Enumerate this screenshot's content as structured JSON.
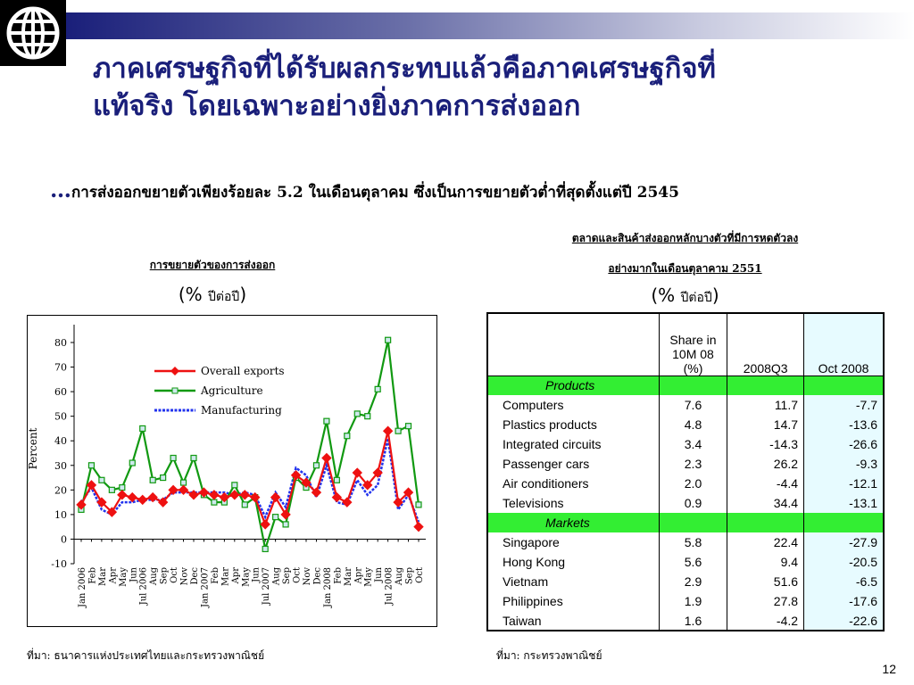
{
  "header": {
    "title_line1": "ภาคเศรษฐกิจที่ได้รับผลกระทบแล้วคือภาคเศรษฐกิจที่",
    "title_line2": "แท้จริง โดยเฉพาะอย่างยิ่งภาคการส่งออก",
    "subtitle_dots": "…",
    "subtitle": "การส่งออกขยายตัวเพียงร้อยละ 5.2 ในเดือนตุลาคม ซึ่งเป็นการขยายตัวต่ำที่สุดตั้งแต่ปี 2545"
  },
  "chart_caption": {
    "title": "การขยายตัวของการส่งออก",
    "unit_sym": "(%",
    "unit_txt": "ปีต่อปี",
    "unit_close": ")"
  },
  "chart_source": "ที่มา: ธนาคารแห่งประเทศไทยและกระทรวงพาณิชย์",
  "chart_data": {
    "type": "line",
    "ylabel": "Percent",
    "ylim": [
      -10,
      80
    ],
    "yticks": [
      -10,
      0,
      10,
      20,
      30,
      40,
      50,
      60,
      70,
      80
    ],
    "categories": [
      "Jan 2006",
      "Feb",
      "Mar",
      "Apr",
      "May",
      "Jun",
      "Jul 2006",
      "Aug",
      "Sep",
      "Oct",
      "Nov",
      "Dec",
      "Jan 2007",
      "Feb",
      "Mar",
      "Apr",
      "May",
      "Jun",
      "Jul 2007",
      "Aug",
      "Sep",
      "Oct",
      "Nov",
      "Dec",
      "Jan 2008",
      "Feb",
      "Mar",
      "Apr",
      "May",
      "Jun",
      "Jul 2008",
      "Aug",
      "Sep",
      "Oct"
    ],
    "legend_position": "top-center",
    "series": [
      {
        "name": "Overall exports",
        "color": "#ee1111",
        "marker": "diamond",
        "values": [
          14,
          22,
          15,
          11,
          18,
          17,
          16,
          17,
          15,
          20,
          20,
          18,
          19,
          18,
          17,
          18,
          18,
          17,
          6,
          17,
          10,
          26,
          23,
          19,
          33,
          17,
          15,
          27,
          22,
          27,
          44,
          15,
          19,
          5
        ]
      },
      {
        "name": "Agriculture",
        "color": "#119911",
        "marker": "square",
        "values": [
          12,
          30,
          24,
          20,
          21,
          31,
          45,
          24,
          25,
          33,
          23,
          33,
          18,
          15,
          15,
          22,
          14,
          17,
          -4,
          9,
          6,
          25,
          21,
          30,
          48,
          24,
          42,
          51,
          50,
          61,
          81,
          44,
          46,
          14
        ]
      },
      {
        "name": "Manufacturing",
        "color": "#2233ee",
        "marker": "none",
        "dashed": true,
        "values": [
          15,
          21,
          12,
          10,
          15,
          15,
          16,
          16,
          16,
          19,
          19,
          19,
          19,
          19,
          19,
          18,
          19,
          18,
          9,
          19,
          13,
          29,
          26,
          17,
          30,
          15,
          14,
          24,
          18,
          22,
          41,
          12,
          18,
          7
        ]
      }
    ]
  },
  "table": {
    "caption_line1": "ตลาดและสินค้าส่งออกหลักบางตัวที่มีการหดตัวลง",
    "caption_line2": "อย่างมากในเดือนตุลาคาม 2551",
    "unit_sym": "(%",
    "unit_txt": "ปีต่อปี",
    "unit_close": ")",
    "headers": [
      "",
      "Share in 10M 08 (%)",
      "2008Q3",
      "Oct 2008"
    ],
    "section_products": "Products",
    "products": [
      [
        "Computers",
        "7.6",
        "11.7",
        "-7.7"
      ],
      [
        "Plastics products",
        "4.8",
        "14.7",
        "-13.6"
      ],
      [
        "Integrated circuits",
        "3.4",
        "-14.3",
        "-26.6"
      ],
      [
        "Passenger cars",
        "2.3",
        "26.2",
        "-9.3"
      ],
      [
        "Air conditioners",
        "2.0",
        "-4.4",
        "-12.1"
      ],
      [
        "Televisions",
        "0.9",
        "34.4",
        "-13.1"
      ]
    ],
    "section_markets": "Markets",
    "markets": [
      [
        "Singapore",
        "5.8",
        "22.4",
        "-27.9"
      ],
      [
        "Hong Kong",
        "5.6",
        "9.4",
        "-20.5"
      ],
      [
        "Vietnam",
        "2.9",
        "51.6",
        "-6.5"
      ],
      [
        "Philippines",
        "1.9",
        "27.8",
        "-17.6"
      ],
      [
        "Taiwan",
        "1.6",
        "-4.2",
        "-22.6"
      ]
    ]
  },
  "table_source": "ที่มา: กระทรวงพาณิชย์",
  "page_number": "12"
}
